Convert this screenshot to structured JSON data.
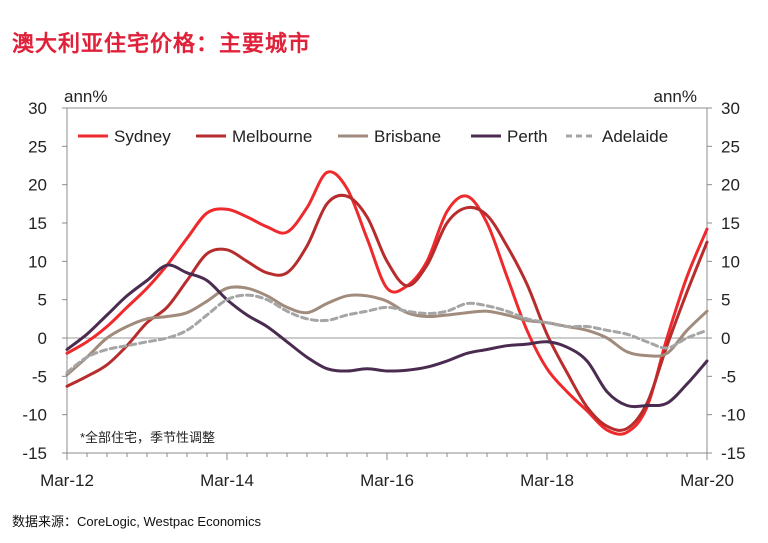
{
  "title": "澳大利亚住宅价格：主要城市",
  "source": "数据来源：CoreLogic, Westpac Economics",
  "chart_data": {
    "type": "line",
    "title": "澳大利亚住宅价格：主要城市",
    "unit_left": "ann%",
    "unit_right": "ann%",
    "ylim": [
      -15,
      30
    ],
    "y_ticks": [
      "30",
      "25",
      "20",
      "15",
      "10",
      "5",
      "0",
      "-5",
      "-10",
      "-15"
    ],
    "x_ticks": [
      "Mar-12",
      "Mar-14",
      "Mar-16",
      "Mar-18",
      "Mar-20"
    ],
    "note": "*全部住宅，季节性调整",
    "legend_position": "top",
    "grid": false,
    "x": [
      "Mar-12",
      "Jun-12",
      "Sep-12",
      "Dec-12",
      "Mar-13",
      "Jun-13",
      "Sep-13",
      "Dec-13",
      "Mar-14",
      "Jun-14",
      "Sep-14",
      "Dec-14",
      "Mar-15",
      "Jun-15",
      "Sep-15",
      "Dec-15",
      "Mar-16",
      "Jun-16",
      "Sep-16",
      "Dec-16",
      "Mar-17",
      "Jun-17",
      "Sep-17",
      "Dec-17",
      "Mar-18",
      "Jun-18",
      "Sep-18",
      "Dec-18",
      "Mar-19",
      "Jun-19",
      "Sep-19",
      "Dec-19",
      "Mar-20"
    ],
    "series": [
      {
        "name": "Sydney",
        "color": "#ee2a2d",
        "dash": "none",
        "values": [
          -2,
          -0.5,
          1.5,
          4,
          6.5,
          9.5,
          13,
          16.3,
          16.8,
          15.8,
          14.5,
          13.8,
          17,
          21.6,
          19.5,
          13,
          6.5,
          6.8,
          10,
          16.5,
          18.5,
          15,
          8,
          1,
          -4,
          -7,
          -9.5,
          -12,
          -12.3,
          -9,
          0,
          8,
          14.2
        ]
      },
      {
        "name": "Melbourne",
        "color": "#b72c2c",
        "dash": "none",
        "values": [
          -6.3,
          -5,
          -3.5,
          -1,
          2,
          4,
          7.5,
          11,
          11.5,
          10,
          8.5,
          8.5,
          12,
          17.5,
          18.5,
          15.8,
          10,
          6.8,
          9.5,
          15,
          17,
          16,
          12,
          7,
          0.5,
          -4.5,
          -9,
          -11.5,
          -11.8,
          -8.5,
          -1,
          6,
          12.5
        ]
      },
      {
        "name": "Brisbane",
        "color": "#a08b7c",
        "dash": "none",
        "values": [
          -4.8,
          -2.5,
          0,
          1.5,
          2.5,
          2.8,
          3.3,
          4.8,
          6.5,
          6.5,
          5.5,
          4,
          3.3,
          4.5,
          5.5,
          5.5,
          4.8,
          3.3,
          2.8,
          3,
          3.3,
          3.5,
          3,
          2.3,
          2,
          1.5,
          1,
          0,
          -1.8,
          -2.3,
          -2,
          1,
          3.5
        ]
      },
      {
        "name": "Perth",
        "color": "#4b2c51",
        "dash": "none",
        "values": [
          -1.5,
          0.5,
          3,
          5.5,
          7.5,
          9.5,
          8.5,
          7.5,
          5,
          3,
          1.5,
          -0.5,
          -2.5,
          -4,
          -4.3,
          -4,
          -4.3,
          -4.2,
          -3.8,
          -3,
          -2,
          -1.5,
          -1,
          -0.8,
          -0.5,
          -1.2,
          -3,
          -7,
          -8.8,
          -8.8,
          -8.5,
          -6,
          -3
        ]
      },
      {
        "name": "Adelaide",
        "color": "#a5a5a5",
        "dash": "6,4",
        "values": [
          -4.5,
          -2.5,
          -1.5,
          -1,
          -0.5,
          0,
          1,
          3,
          5,
          5.6,
          5,
          3.5,
          2.5,
          2.3,
          3,
          3.5,
          4,
          3.5,
          3.2,
          3.5,
          4.5,
          4.2,
          3.5,
          2.5,
          2,
          1.5,
          1.5,
          1,
          0.5,
          -0.5,
          -1.3,
          0,
          1
        ]
      }
    ]
  }
}
